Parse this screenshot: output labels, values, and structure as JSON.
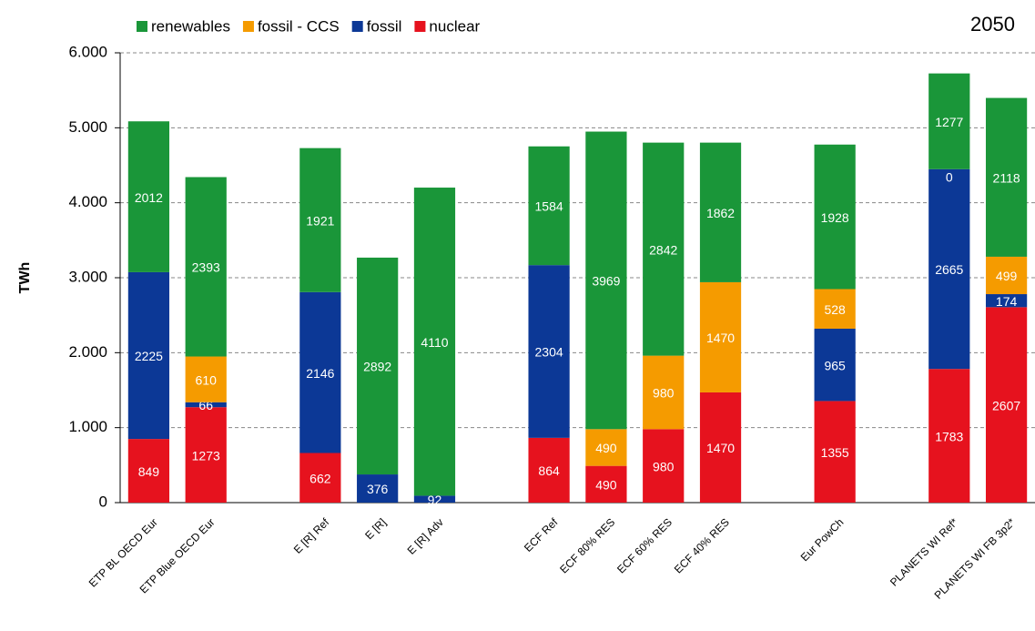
{
  "chart_data": {
    "type": "stacked_bar",
    "annotation": "2050",
    "y_label": "TWh",
    "categories": [
      "ETP BL OECD Eur",
      "ETP Blue OECD Eur",
      null,
      "E [R] Ref",
      "E [R]",
      "E [R] Adv",
      null,
      "ECF Ref",
      "ECF 80% RES",
      "ECF 60% RES",
      "ECF 40% RES",
      null,
      "Eur PowCh",
      null,
      "PLANETS WI Ref*",
      "PLANETS WI FB 3p2*"
    ],
    "series": [
      {
        "name": "renewables",
        "color": "#1a9639",
        "values": [
          2012,
          2393,
          null,
          1921,
          2892,
          4110,
          null,
          1584,
          3969,
          2842,
          1862,
          null,
          1928,
          null,
          1277,
          2118
        ]
      },
      {
        "name": "fossil - CCS",
        "color": "#f59b00",
        "values": [
          null,
          610,
          null,
          null,
          null,
          null,
          null,
          null,
          490,
          980,
          1470,
          null,
          528,
          null,
          0,
          499
        ]
      },
      {
        "name": "fossil",
        "color": "#0c3896",
        "values": [
          2225,
          66,
          null,
          2146,
          376,
          92,
          null,
          2304,
          null,
          null,
          null,
          null,
          965,
          null,
          2665,
          174
        ]
      },
      {
        "name": "nuclear",
        "color": "#e6121e",
        "values": [
          849,
          1273,
          null,
          662,
          null,
          null,
          null,
          864,
          490,
          980,
          1470,
          null,
          1355,
          null,
          1783,
          2607
        ]
      }
    ],
    "ylim": [
      0,
      6000
    ],
    "yticks": [
      0,
      {
        "value": 1000,
        "label": "1.000"
      },
      {
        "value": 2000,
        "label": "2.000"
      },
      {
        "value": 3000,
        "label": "3.000"
      },
      {
        "value": 4000,
        "label": "4.000"
      },
      {
        "value": 5000,
        "label": "5.000"
      },
      {
        "value": 6000,
        "label": "6.000"
      }
    ],
    "grid": true
  }
}
